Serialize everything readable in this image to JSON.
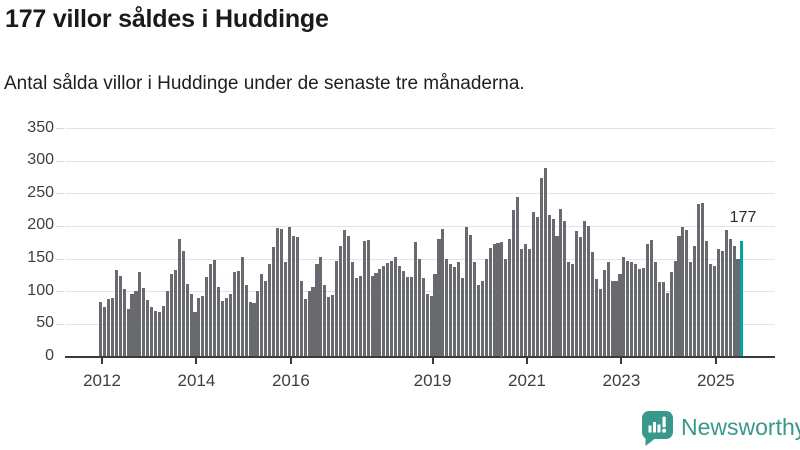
{
  "header": {
    "title": "177 villor såldes i Huddinge",
    "subtitle": "Antal sålda villor i Huddinge under de senaste tre månaderna."
  },
  "chart_data": {
    "type": "bar",
    "title": "177 villor såldes i Huddinge",
    "subtitle": "Antal sålda villor i Huddinge under de senaste tre månaderna.",
    "x_unit": "month",
    "x_start_year": 2012,
    "ylim": [
      0,
      350
    ],
    "yticks": [
      0,
      50,
      100,
      150,
      200,
      250,
      300,
      350
    ],
    "xticks": [
      2012,
      2014,
      2016,
      2019,
      2021,
      2023,
      2025
    ],
    "grid": true,
    "values": [
      83,
      76,
      88,
      89,
      132,
      124,
      104,
      73,
      96,
      101,
      129,
      105,
      86,
      76,
      69,
      68,
      78,
      101,
      126,
      132,
      180,
      162,
      111,
      95,
      68,
      89,
      93,
      122,
      142,
      148,
      107,
      85,
      90,
      95,
      129,
      131,
      152,
      109,
      83,
      82,
      101,
      126,
      116,
      142,
      167,
      197,
      195,
      144,
      199,
      185,
      183,
      116,
      88,
      101,
      106,
      142,
      152,
      110,
      91,
      94,
      147,
      170,
      193,
      185,
      145,
      121,
      124,
      177,
      179,
      124,
      128,
      134,
      139,
      143,
      147,
      152,
      139,
      131,
      122,
      122,
      175,
      150,
      121,
      96,
      93,
      127,
      180,
      196,
      150,
      142,
      137,
      144,
      121,
      198,
      186,
      144,
      110,
      115,
      149,
      166,
      172,
      174,
      175,
      149,
      180,
      225,
      245,
      165,
      172,
      165,
      221,
      213,
      274,
      288,
      216,
      211,
      185,
      226,
      208,
      144,
      142,
      192,
      183,
      208,
      200,
      160,
      119,
      104,
      132,
      144,
      115,
      115,
      127,
      152,
      147,
      144,
      142,
      134,
      136,
      172,
      178,
      144,
      114,
      114,
      98,
      129,
      147,
      185,
      198,
      193,
      144,
      170,
      234,
      235,
      177,
      142,
      138,
      165,
      162,
      193,
      180,
      170,
      150,
      177
    ],
    "highlight": {
      "index": 163,
      "value": 177,
      "label": "177"
    },
    "colors": {
      "bar": "#696970",
      "highlight": "#00a2a2",
      "grid": "#e3e3e3",
      "axis": "#3a3a3a",
      "tick_label": "#3e3e3e"
    }
  },
  "branding": {
    "logo_text": "Newsworthy",
    "logo_color": "#38988c",
    "logo_icon": "newsworthy-chart-bubble-icon"
  }
}
